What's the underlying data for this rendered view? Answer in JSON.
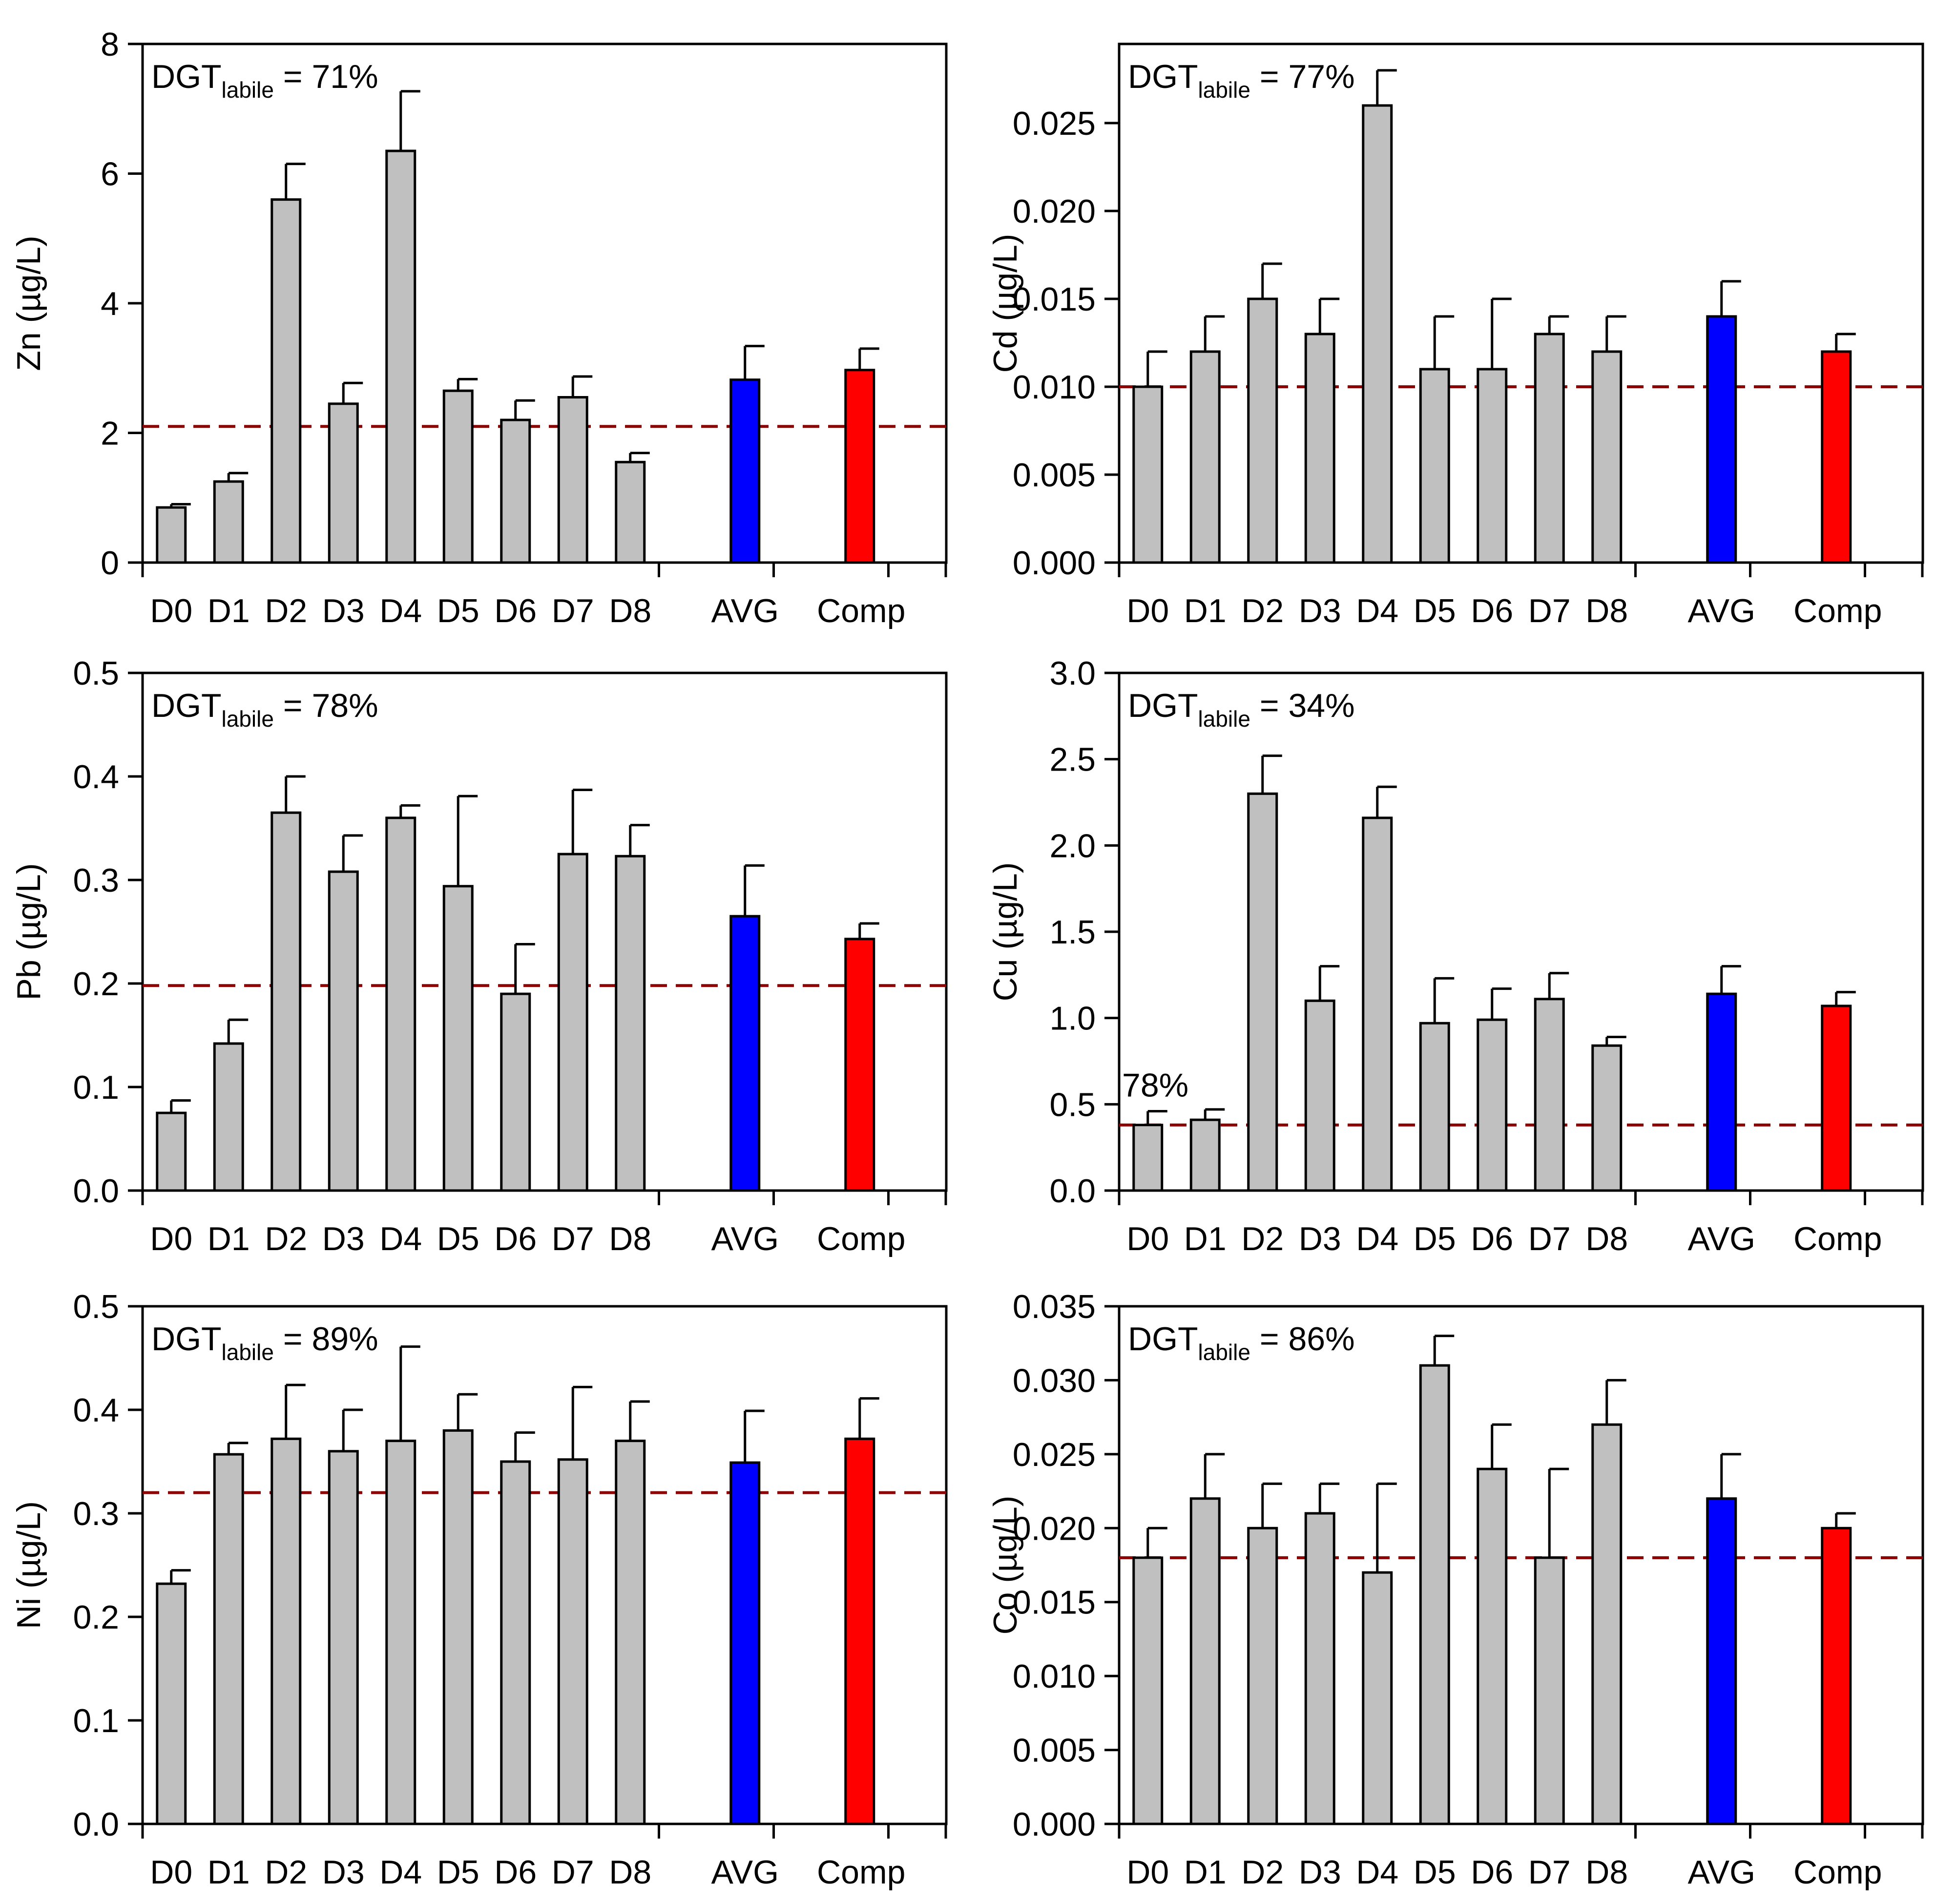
{
  "figure": {
    "bar_gray": "#c0c0c0",
    "bar_avg": "#0000ff",
    "bar_comp": "#ff0000",
    "ref_line_color": "#8b0000"
  },
  "chart_data": [
    {
      "type": "bar",
      "id": "zn",
      "ylabel_element": "Zn",
      "ylabel_units": "(µg/L)",
      "categories": [
        "D0",
        "D1",
        "D2",
        "D3",
        "D4",
        "D5",
        "D6",
        "D7",
        "D8",
        "AVG",
        "Comp"
      ],
      "values": [
        0.85,
        1.25,
        5.6,
        2.45,
        6.35,
        2.65,
        2.2,
        2.55,
        1.55,
        2.82,
        2.97
      ],
      "errors": [
        0.05,
        0.13,
        0.55,
        0.32,
        0.92,
        0.18,
        0.3,
        0.32,
        0.14,
        0.52,
        0.33
      ],
      "bar_colors": [
        "gray",
        "gray",
        "gray",
        "gray",
        "gray",
        "gray",
        "gray",
        "gray",
        "gray",
        "avg",
        "comp"
      ],
      "reference_line": 2.1,
      "ylim": [
        0,
        8
      ],
      "yticks": [
        "0",
        "2",
        "4",
        "6",
        "8"
      ],
      "ytick_values": [
        0,
        2,
        4,
        6,
        8
      ],
      "annotation": {
        "main": "DGT",
        "sub": "labile",
        "value": " = 71%"
      },
      "extra_annotation": null
    },
    {
      "type": "bar",
      "id": "cd",
      "ylabel_element": "Cd",
      "ylabel_units": "(µg/L)",
      "categories": [
        "D0",
        "D1",
        "D2",
        "D3",
        "D4",
        "D5",
        "D6",
        "D7",
        "D8",
        "AVG",
        "Comp"
      ],
      "values": [
        0.01,
        0.012,
        0.015,
        0.013,
        0.026,
        0.011,
        0.011,
        0.013,
        0.012,
        0.014,
        0.012
      ],
      "errors": [
        0.002,
        0.002,
        0.002,
        0.002,
        0.002,
        0.003,
        0.004,
        0.001,
        0.002,
        0.002,
        0.001
      ],
      "bar_colors": [
        "gray",
        "gray",
        "gray",
        "gray",
        "gray",
        "gray",
        "gray",
        "gray",
        "gray",
        "avg",
        "comp"
      ],
      "reference_line": 0.01,
      "ylim": [
        0,
        0.0295
      ],
      "yticks": [
        "0.000",
        "0.005",
        "0.010",
        "0.015",
        "0.020",
        "0.025"
      ],
      "ytick_values": [
        0,
        0.005,
        0.01,
        0.015,
        0.02,
        0.025
      ],
      "annotation": {
        "main": "DGT",
        "sub": "labile",
        "value": " = 77%"
      },
      "extra_annotation": null
    },
    {
      "type": "bar",
      "id": "pb",
      "ylabel_element": "Pb",
      "ylabel_units": "(µg/L)",
      "categories": [
        "D0",
        "D1",
        "D2",
        "D3",
        "D4",
        "D5",
        "D6",
        "D7",
        "D8",
        "AVG",
        "Comp"
      ],
      "values": [
        0.075,
        0.142,
        0.365,
        0.308,
        0.36,
        0.294,
        0.19,
        0.325,
        0.323,
        0.265,
        0.243
      ],
      "errors": [
        0.012,
        0.023,
        0.035,
        0.035,
        0.012,
        0.087,
        0.048,
        0.062,
        0.03,
        0.049,
        0.015
      ],
      "bar_colors": [
        "gray",
        "gray",
        "gray",
        "gray",
        "gray",
        "gray",
        "gray",
        "gray",
        "gray",
        "avg",
        "comp"
      ],
      "reference_line": 0.198,
      "ylim": [
        0,
        0.5
      ],
      "yticks": [
        "0.0",
        "0.1",
        "0.2",
        "0.3",
        "0.4",
        "0.5"
      ],
      "ytick_values": [
        0,
        0.1,
        0.2,
        0.3,
        0.4,
        0.5
      ],
      "annotation": {
        "main": "DGT",
        "sub": "labile",
        "value": " = 78%"
      },
      "extra_annotation": null
    },
    {
      "type": "bar",
      "id": "cu",
      "ylabel_element": "Cu",
      "ylabel_units": "(µg/L)",
      "categories": [
        "D0",
        "D1",
        "D2",
        "D3",
        "D4",
        "D5",
        "D6",
        "D7",
        "D8",
        "AVG",
        "Comp"
      ],
      "values": [
        0.38,
        0.41,
        2.3,
        1.1,
        2.16,
        0.97,
        0.99,
        1.11,
        0.84,
        1.14,
        1.07
      ],
      "errors": [
        0.08,
        0.06,
        0.22,
        0.2,
        0.18,
        0.26,
        0.18,
        0.15,
        0.05,
        0.16,
        0.08
      ],
      "bar_colors": [
        "gray",
        "gray",
        "gray",
        "gray",
        "gray",
        "gray",
        "gray",
        "gray",
        "gray",
        "avg",
        "comp"
      ],
      "reference_line": 0.38,
      "ylim": [
        0,
        3.0
      ],
      "yticks": [
        "0.0",
        "0.5",
        "1.0",
        "1.5",
        "2.0",
        "2.5",
        "3.0"
      ],
      "ytick_values": [
        0,
        0.5,
        1.0,
        1.5,
        2.0,
        2.5,
        3.0
      ],
      "annotation": {
        "main": "DGT",
        "sub": "labile",
        "value": " = 34%"
      },
      "extra_annotation": "78%"
    },
    {
      "type": "bar",
      "id": "ni",
      "ylabel_element": "Ni",
      "ylabel_units": "(µg/L)",
      "categories": [
        "D0",
        "D1",
        "D2",
        "D3",
        "D4",
        "D5",
        "D6",
        "D7",
        "D8",
        "AVG",
        "Comp"
      ],
      "values": [
        0.232,
        0.357,
        0.372,
        0.36,
        0.37,
        0.38,
        0.35,
        0.352,
        0.37,
        0.349,
        0.372
      ],
      "errors": [
        0.013,
        0.011,
        0.052,
        0.04,
        0.091,
        0.035,
        0.028,
        0.07,
        0.038,
        0.05,
        0.039
      ],
      "bar_colors": [
        "gray",
        "gray",
        "gray",
        "gray",
        "gray",
        "gray",
        "gray",
        "gray",
        "gray",
        "avg",
        "comp"
      ],
      "reference_line": 0.32,
      "ylim": [
        0,
        0.5
      ],
      "yticks": [
        "0.0",
        "0.1",
        "0.2",
        "0.3",
        "0.4",
        "0.5"
      ],
      "ytick_values": [
        0,
        0.1,
        0.2,
        0.3,
        0.4,
        0.5
      ],
      "annotation": {
        "main": "DGT",
        "sub": "labile",
        "value": " = 89%"
      },
      "extra_annotation": null
    },
    {
      "type": "bar",
      "id": "co",
      "ylabel_element": "Co",
      "ylabel_units": "(µg/L)",
      "categories": [
        "D0",
        "D1",
        "D2",
        "D3",
        "D4",
        "D5",
        "D6",
        "D7",
        "D8",
        "AVG",
        "Comp"
      ],
      "values": [
        0.018,
        0.022,
        0.02,
        0.021,
        0.017,
        0.031,
        0.024,
        0.018,
        0.027,
        0.022,
        0.02
      ],
      "errors": [
        0.002,
        0.003,
        0.003,
        0.002,
        0.006,
        0.002,
        0.003,
        0.006,
        0.003,
        0.003,
        0.001
      ],
      "bar_colors": [
        "gray",
        "gray",
        "gray",
        "gray",
        "gray",
        "gray",
        "gray",
        "gray",
        "gray",
        "avg",
        "comp"
      ],
      "reference_line": 0.018,
      "ylim": [
        0,
        0.035
      ],
      "yticks": [
        "0.000",
        "0.005",
        "0.010",
        "0.015",
        "0.020",
        "0.025",
        "0.030",
        "0.035"
      ],
      "ytick_values": [
        0,
        0.005,
        0.01,
        0.015,
        0.02,
        0.025,
        0.03,
        0.035
      ],
      "annotation": {
        "main": "DGT",
        "sub": "labile",
        "value": " = 86%"
      },
      "extra_annotation": null
    }
  ]
}
